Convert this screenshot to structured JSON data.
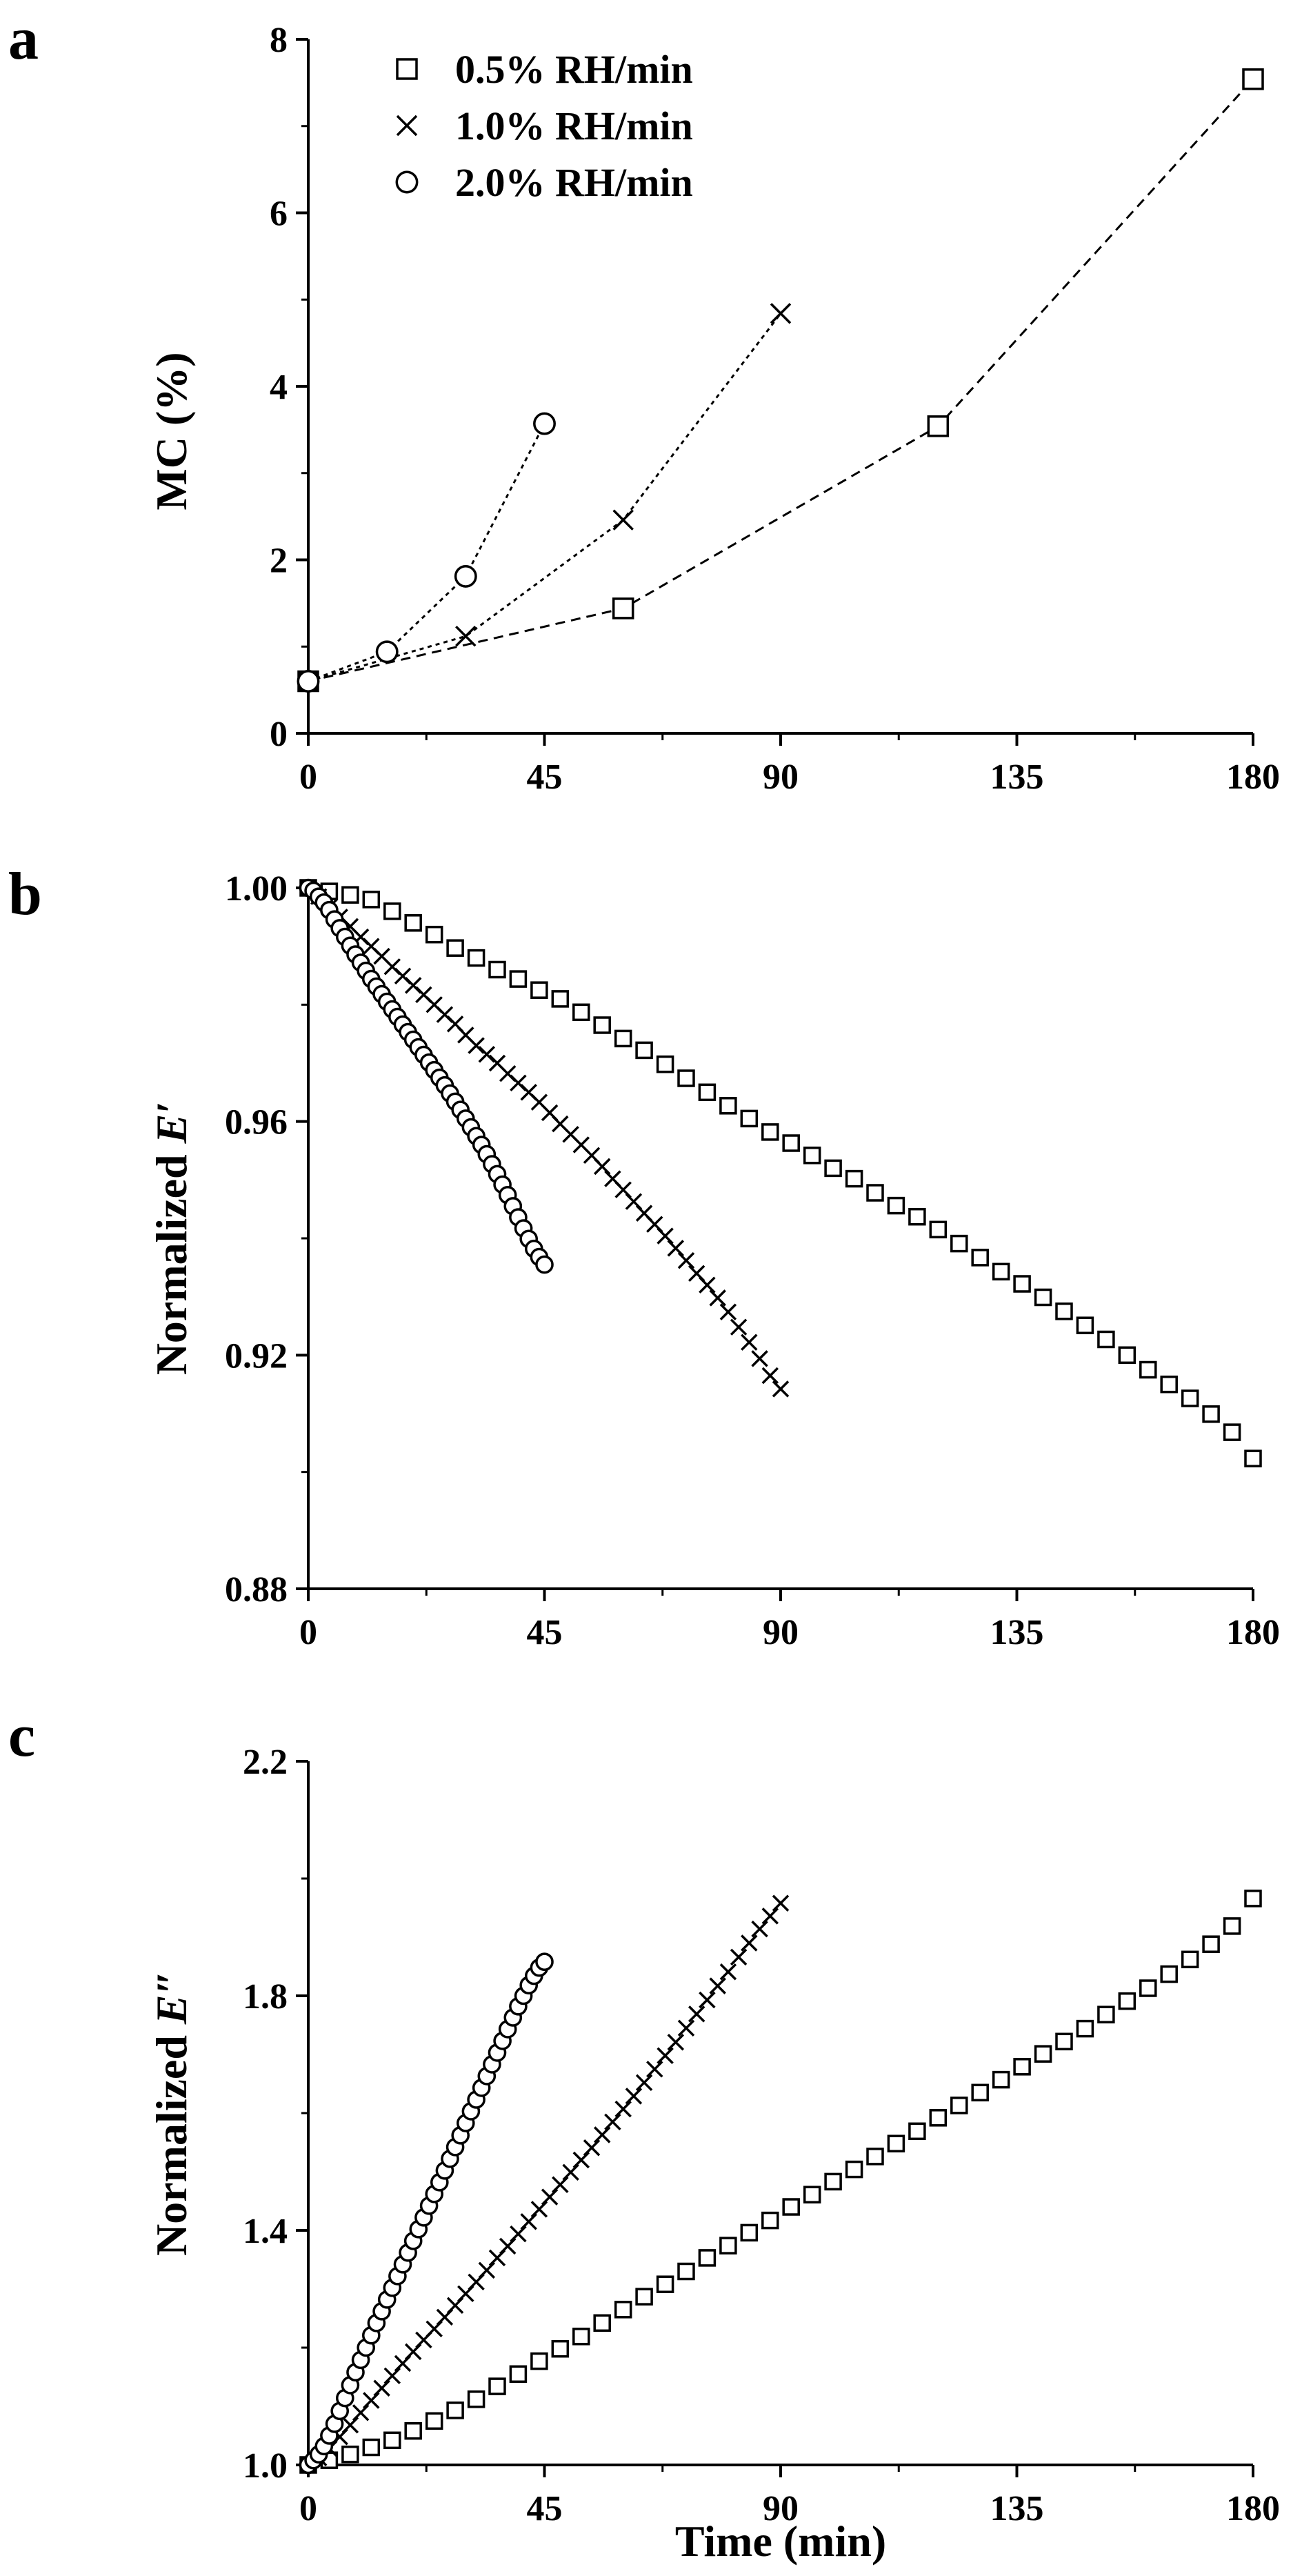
{
  "figure": {
    "panels": [
      "a",
      "b",
      "c"
    ],
    "legend": [
      "0.5% RH/min",
      "1.0% RH/min",
      "2.0% RH/min"
    ],
    "marker_names": [
      "square",
      "cross",
      "circle"
    ],
    "shared_xlabel": "Time (min)"
  },
  "chart_data": [
    {
      "type": "scatter",
      "panel": "a",
      "ylabel": "MC (%)",
      "xlim": [
        0,
        180
      ],
      "ylim": [
        0,
        8
      ],
      "x_ticks": [
        0,
        45,
        90,
        135,
        180
      ],
      "y_ticks": [
        0,
        2,
        4,
        6,
        8
      ],
      "x_tick_labels": [
        "0",
        "45",
        "90",
        "135",
        "180"
      ],
      "y_tick_labels": [
        "0",
        "2",
        "4",
        "6",
        "8"
      ],
      "grid": false,
      "legend_position": "top-left",
      "connect_points": true,
      "series": [
        {
          "name": "0.5% RH/min",
          "marker": "square",
          "x": [
            0,
            60,
            120,
            180
          ],
          "y": [
            0.6,
            1.44,
            3.54,
            7.54
          ]
        },
        {
          "name": "1.0% RH/min",
          "marker": "cross",
          "x": [
            0,
            30,
            60,
            90
          ],
          "y": [
            0.6,
            1.12,
            2.46,
            4.84
          ]
        },
        {
          "name": "2.0% RH/min",
          "marker": "circle",
          "x": [
            0,
            15,
            30,
            45
          ],
          "y": [
            0.6,
            0.94,
            1.81,
            3.57
          ]
        }
      ]
    },
    {
      "type": "scatter",
      "panel": "b",
      "ylabel": "Normalized E′",
      "ylabel_prefix": "Normalized ",
      "ylabel_symbol": "E′",
      "xlim": [
        0,
        180
      ],
      "ylim": [
        0.88,
        1.0
      ],
      "x_ticks": [
        0,
        45,
        90,
        135,
        180
      ],
      "y_ticks": [
        0.88,
        0.92,
        0.96,
        1.0
      ],
      "x_tick_labels": [
        "0",
        "45",
        "90",
        "135",
        "180"
      ],
      "y_tick_labels": [
        "0.88",
        "0.92",
        "0.96",
        "1.00"
      ],
      "grid": false,
      "connect_points": false,
      "series": [
        {
          "name": "0.5% RH/min",
          "marker": "square",
          "x": [
            0,
            4,
            8,
            12,
            16,
            20,
            24,
            28,
            32,
            36,
            40,
            44,
            48,
            52,
            56,
            60,
            64,
            68,
            72,
            76,
            80,
            84,
            88,
            92,
            96,
            100,
            104,
            108,
            112,
            116,
            120,
            124,
            128,
            132,
            136,
            140,
            144,
            148,
            152,
            156,
            160,
            164,
            168,
            172,
            176,
            180
          ],
          "y": [
            1.0,
            0.9994,
            0.9988,
            0.998,
            0.996,
            0.994,
            0.992,
            0.9897,
            0.988,
            0.986,
            0.9844,
            0.9825,
            0.981,
            0.9787,
            0.9765,
            0.9742,
            0.9722,
            0.9698,
            0.9674,
            0.965,
            0.9627,
            0.9605,
            0.9582,
            0.9563,
            0.9542,
            0.952,
            0.9502,
            0.9478,
            0.9456,
            0.9437,
            0.9415,
            0.9391,
            0.9367,
            0.9343,
            0.9322,
            0.9299,
            0.9275,
            0.9251,
            0.9227,
            0.92,
            0.9175,
            0.915,
            0.9126,
            0.9099,
            0.9068,
            0.9023
          ]
        },
        {
          "name": "1.0% RH/min",
          "marker": "cross",
          "x": [
            0,
            2,
            4,
            6,
            8,
            10,
            12,
            14,
            16,
            18,
            20,
            22,
            24,
            26,
            28,
            30,
            32,
            34,
            36,
            38,
            40,
            42,
            44,
            46,
            48,
            50,
            52,
            54,
            56,
            58,
            60,
            62,
            64,
            66,
            68,
            70,
            72,
            74,
            76,
            78,
            80,
            82,
            84,
            86,
            88,
            90
          ],
          "y": [
            1.0,
            0.9985,
            0.9967,
            0.995,
            0.9934,
            0.9916,
            0.99,
            0.9883,
            0.9865,
            0.9849,
            0.9833,
            0.9817,
            0.98,
            0.9783,
            0.9767,
            0.9748,
            0.973,
            0.9715,
            0.97,
            0.9682,
            0.9666,
            0.965,
            0.9633,
            0.9615,
            0.9596,
            0.9578,
            0.956,
            0.9542,
            0.9523,
            0.9502,
            0.9483,
            0.9463,
            0.9443,
            0.9424,
            0.9404,
            0.9383,
            0.9362,
            0.934,
            0.932,
            0.9298,
            0.9274,
            0.9248,
            0.9222,
            0.9194,
            0.9165,
            0.9142
          ]
        },
        {
          "name": "2.0% RH/min",
          "marker": "circle",
          "x": [
            0,
            1,
            2,
            3,
            4,
            5,
            6,
            7,
            8,
            9,
            10,
            11,
            12,
            13,
            14,
            15,
            16,
            17,
            18,
            19,
            20,
            21,
            22,
            23,
            24,
            25,
            26,
            27,
            28,
            29,
            30,
            31,
            32,
            33,
            34,
            35,
            36,
            37,
            38,
            39,
            40,
            41,
            42,
            43,
            44,
            45
          ],
          "y": [
            1.0,
            0.9995,
            0.9985,
            0.9975,
            0.9962,
            0.9946,
            0.9931,
            0.9916,
            0.9901,
            0.9886,
            0.9872,
            0.9858,
            0.9844,
            0.9831,
            0.9818,
            0.9805,
            0.9792,
            0.9779,
            0.9766,
            0.9753,
            0.974,
            0.9727,
            0.9714,
            0.9701,
            0.9688,
            0.9675,
            0.9662,
            0.9648,
            0.9634,
            0.962,
            0.9605,
            0.959,
            0.9575,
            0.956,
            0.9544,
            0.9527,
            0.951,
            0.9492,
            0.9474,
            0.9455,
            0.9436,
            0.9417,
            0.9399,
            0.9382,
            0.9368,
            0.9355
          ]
        }
      ]
    },
    {
      "type": "scatter",
      "panel": "c",
      "ylabel": "Normalized E″",
      "ylabel_prefix": "Normalized ",
      "ylabel_symbol": "E″",
      "xlabel": "Time (min)",
      "xlim": [
        0,
        180
      ],
      "ylim": [
        1.0,
        2.2
      ],
      "x_ticks": [
        0,
        45,
        90,
        135,
        180
      ],
      "y_ticks": [
        1.0,
        1.4,
        1.8,
        2.2
      ],
      "x_tick_labels": [
        "0",
        "45",
        "90",
        "135",
        "180"
      ],
      "y_tick_labels": [
        "1.0",
        "1.4",
        "1.8",
        "2.2"
      ],
      "grid": false,
      "connect_points": false,
      "series": [
        {
          "name": "0.5% RH/min",
          "marker": "square",
          "x": [
            0,
            4,
            8,
            12,
            16,
            20,
            24,
            28,
            32,
            36,
            40,
            44,
            48,
            52,
            56,
            60,
            64,
            68,
            72,
            76,
            80,
            84,
            88,
            92,
            96,
            100,
            104,
            108,
            112,
            116,
            120,
            124,
            128,
            132,
            136,
            140,
            144,
            148,
            152,
            156,
            160,
            164,
            168,
            172,
            176,
            180
          ],
          "y": [
            1.0,
            1.008,
            1.018,
            1.03,
            1.042,
            1.058,
            1.075,
            1.093,
            1.112,
            1.134,
            1.155,
            1.177,
            1.198,
            1.219,
            1.242,
            1.265,
            1.287,
            1.308,
            1.33,
            1.353,
            1.374,
            1.396,
            1.417,
            1.44,
            1.461,
            1.483,
            1.504,
            1.526,
            1.548,
            1.569,
            1.592,
            1.613,
            1.635,
            1.657,
            1.679,
            1.701,
            1.722,
            1.744,
            1.768,
            1.791,
            1.813,
            1.837,
            1.862,
            1.888,
            1.919,
            1.966
          ]
        },
        {
          "name": "1.0% RH/min",
          "marker": "cross",
          "x": [
            0,
            2,
            4,
            6,
            8,
            10,
            12,
            14,
            16,
            18,
            20,
            22,
            24,
            26,
            28,
            30,
            32,
            34,
            36,
            38,
            40,
            42,
            44,
            46,
            48,
            50,
            52,
            54,
            56,
            58,
            60,
            62,
            64,
            66,
            68,
            70,
            72,
            74,
            76,
            78,
            80,
            82,
            84,
            86,
            88,
            90
          ],
          "y": [
            1.0,
            1.012,
            1.028,
            1.048,
            1.068,
            1.089,
            1.11,
            1.131,
            1.152,
            1.173,
            1.193,
            1.213,
            1.232,
            1.252,
            1.272,
            1.292,
            1.312,
            1.332,
            1.353,
            1.373,
            1.394,
            1.415,
            1.436,
            1.457,
            1.478,
            1.499,
            1.52,
            1.541,
            1.563,
            1.585,
            1.607,
            1.629,
            1.652,
            1.675,
            1.698,
            1.721,
            1.745,
            1.769,
            1.793,
            1.817,
            1.841,
            1.866,
            1.89,
            1.914,
            1.936,
            1.958
          ]
        },
        {
          "name": "2.0% RH/min",
          "marker": "circle",
          "x": [
            0,
            1,
            2,
            3,
            4,
            5,
            6,
            7,
            8,
            9,
            10,
            11,
            12,
            13,
            14,
            15,
            16,
            17,
            18,
            19,
            20,
            21,
            22,
            23,
            24,
            25,
            26,
            27,
            28,
            29,
            30,
            31,
            32,
            33,
            34,
            35,
            36,
            37,
            38,
            39,
            40,
            41,
            42,
            43,
            44,
            45
          ],
          "y": [
            1.0,
            1.008,
            1.018,
            1.032,
            1.05,
            1.07,
            1.092,
            1.114,
            1.136,
            1.158,
            1.179,
            1.2,
            1.221,
            1.242,
            1.262,
            1.282,
            1.302,
            1.322,
            1.342,
            1.362,
            1.382,
            1.402,
            1.422,
            1.442,
            1.462,
            1.482,
            1.502,
            1.522,
            1.542,
            1.562,
            1.583,
            1.603,
            1.623,
            1.643,
            1.663,
            1.683,
            1.703,
            1.723,
            1.743,
            1.763,
            1.782,
            1.8,
            1.818,
            1.834,
            1.848,
            1.858
          ]
        }
      ]
    }
  ]
}
